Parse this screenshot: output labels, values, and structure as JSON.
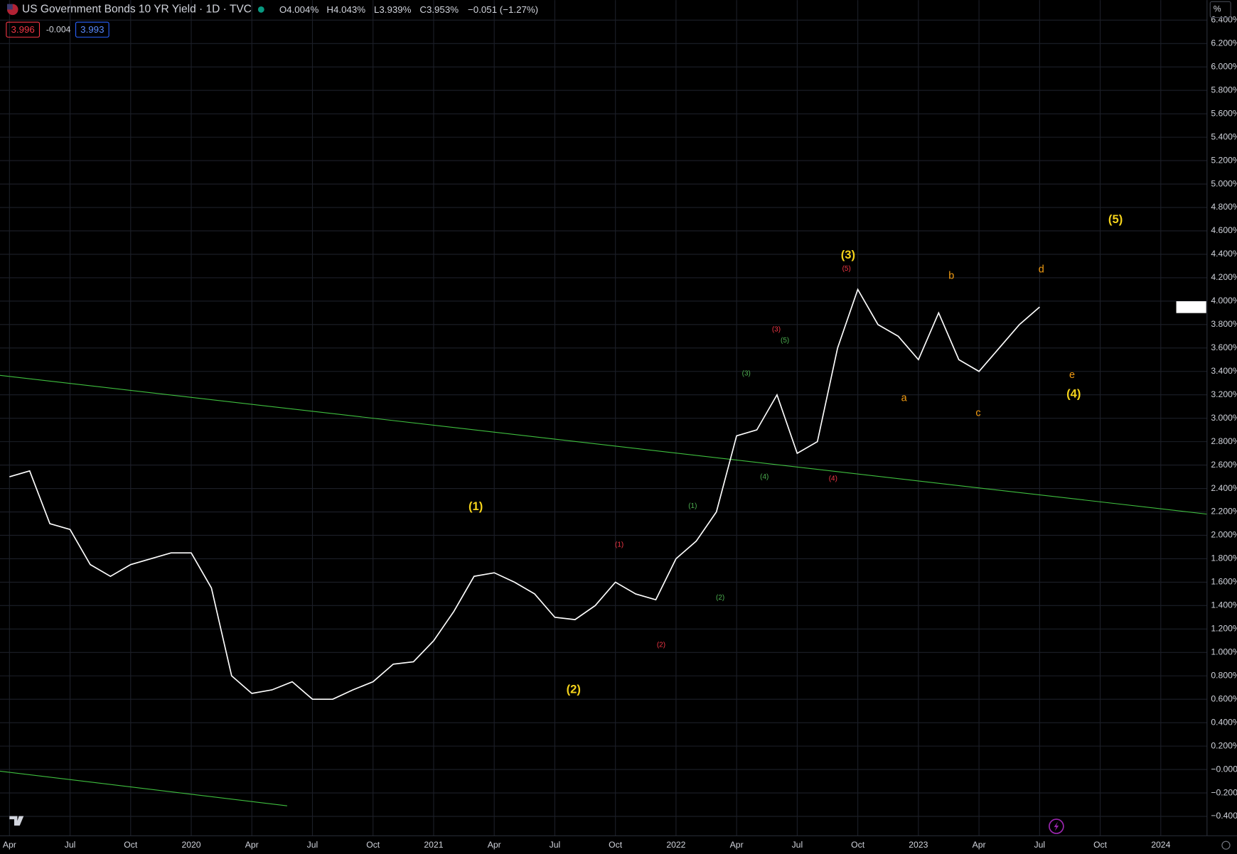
{
  "header": {
    "title": "US Government Bonds 10 YR Yield · 1D · TVC",
    "open": "O4.004%",
    "high": "H4.043%",
    "low": "L3.939%",
    "close": "C3.953%",
    "change": "−0.051 (−1.27%)",
    "bid": "3.996",
    "spread": "-0.004",
    "ask": "3.993",
    "scale": "%"
  },
  "chart_data": {
    "type": "line",
    "x": [
      "2019-04",
      "2019-05",
      "2019-06",
      "2019-07",
      "2019-08",
      "2019-09",
      "2019-10",
      "2019-11",
      "2019-12",
      "2020-01",
      "2020-02",
      "2020-03",
      "2020-04",
      "2020-05",
      "2020-06",
      "2020-07",
      "2020-08",
      "2020-09",
      "2020-10",
      "2020-11",
      "2020-12",
      "2021-01",
      "2021-02",
      "2021-03",
      "2021-04",
      "2021-05",
      "2021-06",
      "2021-07",
      "2021-08",
      "2021-09",
      "2021-10",
      "2021-11",
      "2021-12",
      "2022-01",
      "2022-02",
      "2022-03",
      "2022-04",
      "2022-05",
      "2022-06",
      "2022-07",
      "2022-08",
      "2022-09",
      "2022-10",
      "2022-11",
      "2022-12",
      "2023-01",
      "2023-02",
      "2023-03",
      "2023-04",
      "2023-05",
      "2023-06",
      "2023-07"
    ],
    "series": [
      {
        "color": "#ffffff",
        "values": [
          2.5,
          2.55,
          2.1,
          2.05,
          1.75,
          1.65,
          1.75,
          1.8,
          1.85,
          1.85,
          1.55,
          0.8,
          0.65,
          0.68,
          0.75,
          0.6,
          0.6,
          0.68,
          0.75,
          0.9,
          0.92,
          1.1,
          1.35,
          1.65,
          1.68,
          1.6,
          1.5,
          1.3,
          1.28,
          1.4,
          1.6,
          1.5,
          1.45,
          1.8,
          1.95,
          2.2,
          2.85,
          2.9,
          3.2,
          2.7,
          2.8,
          3.6,
          4.1,
          3.8,
          3.7,
          3.5,
          3.9,
          3.5,
          3.4,
          3.6,
          3.8,
          3.95
        ]
      }
    ],
    "xlim": [
      "2019-04",
      "2024-02"
    ],
    "xticks": [
      {
        "value": "2019-04",
        "label": "Apr"
      },
      {
        "value": "2019-07",
        "label": "Jul"
      },
      {
        "value": "2019-10",
        "label": "Oct"
      },
      {
        "value": "2020-01",
        "label": "2020"
      },
      {
        "value": "2020-04",
        "label": "Apr"
      },
      {
        "value": "2020-07",
        "label": "Jul"
      },
      {
        "value": "2020-10",
        "label": "Oct"
      },
      {
        "value": "2021-01",
        "label": "2021"
      },
      {
        "value": "2021-04",
        "label": "Apr"
      },
      {
        "value": "2021-07",
        "label": "Jul"
      },
      {
        "value": "2021-10",
        "label": "Oct"
      },
      {
        "value": "2022-01",
        "label": "2022"
      },
      {
        "value": "2022-04",
        "label": "Apr"
      },
      {
        "value": "2022-07",
        "label": "Jul"
      },
      {
        "value": "2022-10",
        "label": "Oct"
      },
      {
        "value": "2023-01",
        "label": "2023"
      },
      {
        "value": "2023-04",
        "label": "Apr"
      },
      {
        "value": "2023-07",
        "label": "Jul"
      },
      {
        "value": "2023-10",
        "label": "Oct"
      },
      {
        "value": "2024-01",
        "label": "2024"
      }
    ],
    "ylim": [
      -0.566,
      6.45
    ],
    "yticks": [
      {
        "value": -0.4,
        "label": "−0.400%"
      },
      {
        "value": -0.2,
        "label": "−0.200%"
      },
      {
        "value": 0,
        "label": "−0.000%"
      },
      {
        "value": 0.2,
        "label": "0.200%"
      },
      {
        "value": 0.4,
        "label": "0.400%"
      },
      {
        "value": 0.6,
        "label": "0.600%"
      },
      {
        "value": 0.8,
        "label": "0.800%"
      },
      {
        "value": 1.0,
        "label": "1.000%"
      },
      {
        "value": 1.2,
        "label": "1.200%"
      },
      {
        "value": 1.4,
        "label": "1.400%"
      },
      {
        "value": 1.6,
        "label": "1.600%"
      },
      {
        "value": 1.8,
        "label": "1.800%"
      },
      {
        "value": 2.0,
        "label": "2.000%"
      },
      {
        "value": 2.2,
        "label": "2.200%"
      },
      {
        "value": 2.4,
        "label": "2.400%"
      },
      {
        "value": 2.6,
        "label": "2.600%"
      },
      {
        "value": 2.8,
        "label": "2.800%"
      },
      {
        "value": 3.0,
        "label": "3.000%"
      },
      {
        "value": 3.2,
        "label": "3.200%"
      },
      {
        "value": 3.4,
        "label": "3.400%"
      },
      {
        "value": 3.6,
        "label": "3.600%"
      },
      {
        "value": 3.8,
        "label": "3.800%"
      },
      {
        "value": 4.0,
        "label": "4.000%"
      },
      {
        "value": 4.2,
        "label": "4.200%"
      },
      {
        "value": 4.4,
        "label": "4.400%"
      },
      {
        "value": 4.6,
        "label": "4.600%"
      },
      {
        "value": 4.8,
        "label": "4.800%"
      },
      {
        "value": 5.0,
        "label": "5.000%"
      },
      {
        "value": 5.2,
        "label": "5.200%"
      },
      {
        "value": 5.4,
        "label": "5.400%"
      },
      {
        "value": 5.6,
        "label": "5.600%"
      },
      {
        "value": 5.8,
        "label": "5.800%"
      },
      {
        "value": 6.0,
        "label": "6.000%"
      },
      {
        "value": 6.2,
        "label": "6.200%"
      },
      {
        "value": 6.4,
        "label": "6.400%"
      }
    ],
    "grid": true,
    "annotations": {
      "major": [
        "(1)",
        "(2)",
        "(3)",
        "(4)",
        "(5)"
      ],
      "red": [
        "(1)",
        "(2)",
        "(3)",
        "(4)",
        "(5)"
      ],
      "green": [
        "(1)",
        "(2)",
        "(3)",
        "(4)",
        "(5)"
      ],
      "abc": [
        "a",
        "b",
        "c",
        "d",
        "e"
      ]
    }
  }
}
